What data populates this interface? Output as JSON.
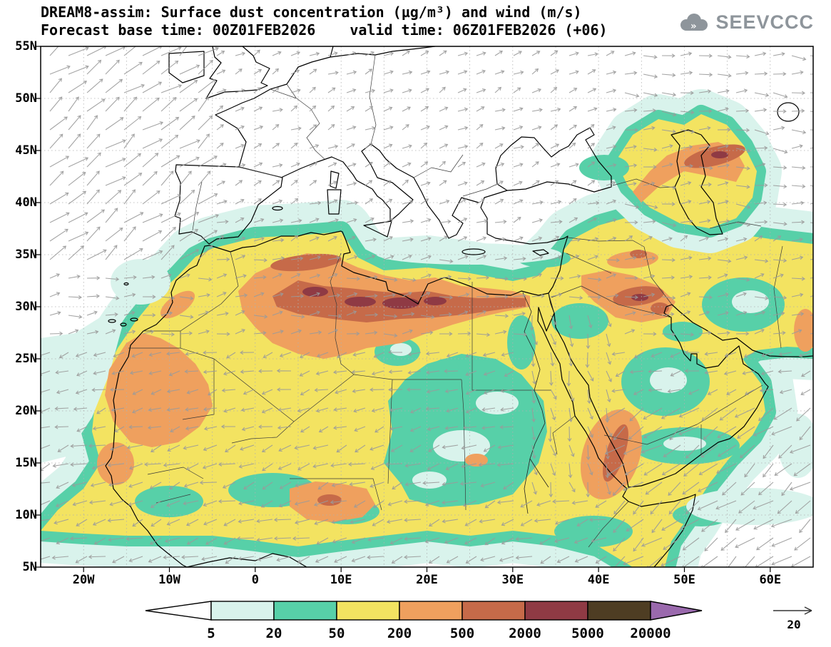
{
  "header": {
    "title_line1": "DREAM8-assim: Surface dust concentration (µg/m³) and wind (m/s)",
    "forecast_base": "Forecast base time: 00Z01FEB2026",
    "valid_time": "valid time: 06Z01FEB2026 (+06)",
    "logo_text": "SEEVCCC"
  },
  "axes": {
    "lat_labels": [
      "55N",
      "50N",
      "45N",
      "40N",
      "35N",
      "30N",
      "25N",
      "20N",
      "15N",
      "10N",
      "5N"
    ],
    "lon_labels": [
      "20W",
      "10W",
      "0",
      "10E",
      "20E",
      "30E",
      "40E",
      "50E",
      "60E"
    ]
  },
  "colorbar": {
    "tick_labels": [
      "5",
      "20",
      "50",
      "200",
      "500",
      "2000",
      "5000",
      "20000"
    ],
    "segment_colors": [
      "#d9f3ec",
      "#57d0a8",
      "#f3e361",
      "#efa05e",
      "#c66a49",
      "#8f3a44",
      "#4e3d23",
      "#9a69ad"
    ],
    "below_color": "#ffffff",
    "above_color": "#9a69ad"
  },
  "wind_legend": {
    "label": "20"
  }
}
